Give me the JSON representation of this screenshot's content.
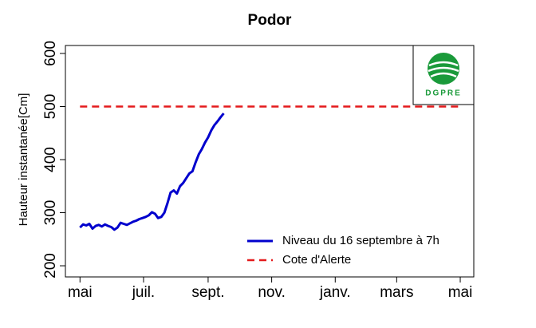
{
  "chart_data": {
    "type": "line",
    "title": "Podor",
    "y_label": "Hauteur instantanée[Cm]",
    "xlim": [
      -14,
      378
    ],
    "ylim": [
      179,
      615
    ],
    "xticks": [
      {
        "value": 0,
        "label": "mai"
      },
      {
        "value": 61,
        "label": "juil."
      },
      {
        "value": 123,
        "label": "sept."
      },
      {
        "value": 184,
        "label": "nov."
      },
      {
        "value": 245,
        "label": "janv."
      },
      {
        "value": 304,
        "label": "mars"
      },
      {
        "value": 365,
        "label": "mai"
      }
    ],
    "yticks": [
      200,
      300,
      400,
      500,
      600
    ],
    "legend": "bottom-right",
    "series": [
      {
        "name": "Niveau du 16 septembre à 7h",
        "color": "#0000cd",
        "dash": false,
        "x": [
          0,
          3,
          6,
          9,
          12,
          15,
          18,
          21,
          24,
          27,
          30,
          33,
          36,
          39,
          42,
          45,
          48,
          51,
          54,
          57,
          60,
          63,
          66,
          69,
          72,
          75,
          78,
          81,
          84,
          87,
          90,
          93,
          96,
          99,
          102,
          105,
          108,
          111,
          114,
          117,
          120,
          123,
          126,
          129,
          132,
          135,
          138
        ],
        "values": [
          272,
          278,
          276,
          279,
          270,
          275,
          277,
          274,
          278,
          275,
          273,
          268,
          272,
          281,
          279,
          277,
          280,
          283,
          285,
          288,
          290,
          292,
          295,
          301,
          298,
          290,
          292,
          300,
          318,
          338,
          342,
          336,
          350,
          356,
          365,
          374,
          378,
          395,
          410,
          420,
          432,
          442,
          455,
          465,
          472,
          480,
          487
        ]
      },
      {
        "name": "Cote d'Alerte",
        "color": "#e41a1c",
        "dash": true,
        "x": [
          0,
          365
        ],
        "values": [
          500,
          500
        ]
      }
    ]
  },
  "logo": "DGPRE"
}
